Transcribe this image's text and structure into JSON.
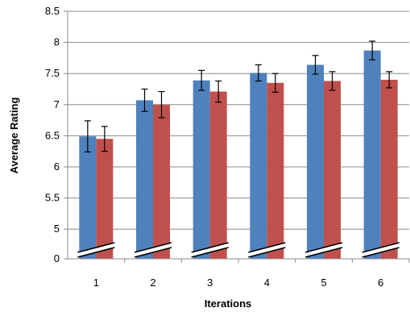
{
  "chart_data": {
    "type": "bar",
    "title": "",
    "xlabel": "Iterations",
    "ylabel": "Average Rating",
    "categories": [
      "1",
      "2",
      "3",
      "4",
      "5",
      "6"
    ],
    "y_tick_labels": [
      "0",
      "5",
      "5.5",
      "6",
      "6.5",
      "7",
      "7.5",
      "8",
      "8.5"
    ],
    "axis_break": {
      "between": [
        0,
        5
      ]
    },
    "ylim": [
      4.5,
      8.5
    ],
    "grid": true,
    "legend": "none",
    "colors": [
      "#4f81bd",
      "#c0504d"
    ],
    "series": [
      {
        "values": [
          6.49,
          7.07,
          7.39,
          7.51,
          7.64,
          7.87
        ],
        "error": [
          0.25,
          0.18,
          0.16,
          0.13,
          0.15,
          0.15
        ]
      },
      {
        "values": [
          6.45,
          7.0,
          7.21,
          7.35,
          7.38,
          7.4
        ],
        "error": [
          0.2,
          0.21,
          0.17,
          0.15,
          0.15,
          0.13
        ]
      }
    ]
  }
}
